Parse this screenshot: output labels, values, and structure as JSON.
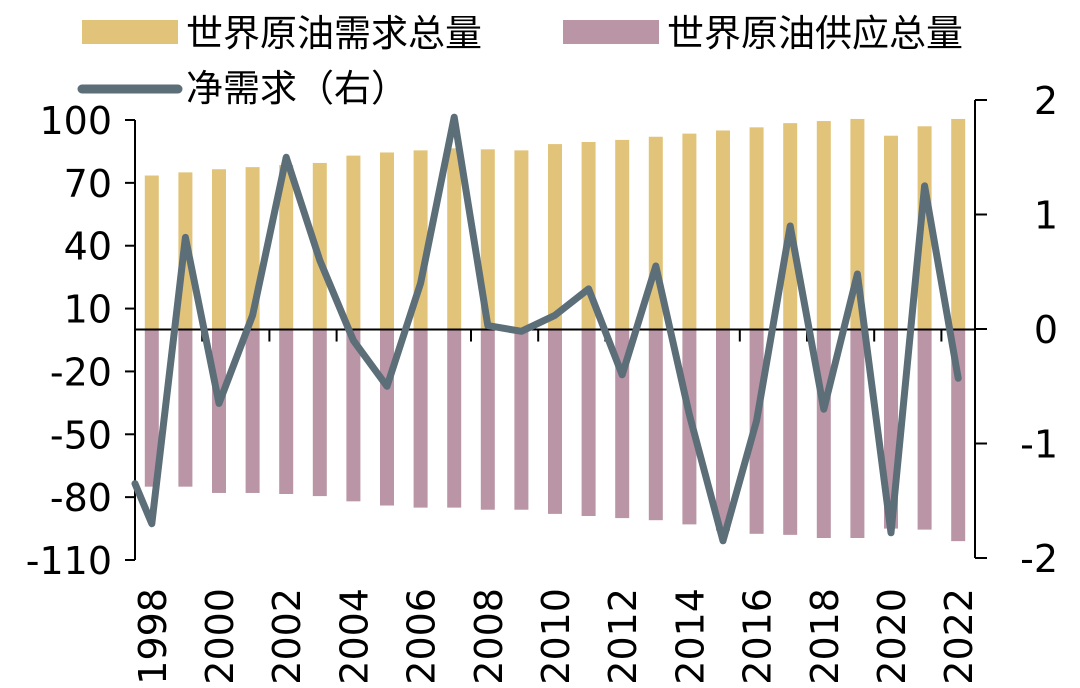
{
  "chart_data": {
    "type": "bar",
    "categories": [
      "1998",
      "1999",
      "2000",
      "2001",
      "2002",
      "2003",
      "2004",
      "2005",
      "2006",
      "2007",
      "2008",
      "2009",
      "2010",
      "2011",
      "2012",
      "2013",
      "2014",
      "2015",
      "2016",
      "2017",
      "2018",
      "2019",
      "2020",
      "2021",
      "2022"
    ],
    "x_tick_labels": [
      "1998",
      "2000",
      "2002",
      "2004",
      "2006",
      "2008",
      "2010",
      "2012",
      "2014",
      "2016",
      "2018",
      "2020",
      "2022"
    ],
    "series": [
      {
        "name": "世界原油需求总量",
        "type": "bar",
        "axis": "left",
        "color": "#E2C37A",
        "values": [
          73.5,
          75,
          76.5,
          77.5,
          78.5,
          79.5,
          83,
          84.5,
          85.5,
          86.5,
          86,
          85.5,
          88.5,
          89.5,
          90.5,
          92,
          93.5,
          95,
          96.5,
          98.5,
          99.5,
          100.5,
          92.5,
          97,
          100.5
        ]
      },
      {
        "name": "世界原油供应总量",
        "type": "bar",
        "axis": "left",
        "color": "#B995A6",
        "values": [
          -75,
          -75,
          -78,
          -78,
          -78.5,
          -79.5,
          -82,
          -84,
          -85,
          -85,
          -86,
          -86,
          -88,
          -89,
          -90,
          -91,
          -93,
          -96,
          -97.5,
          -98,
          -99.5,
          -99.5,
          -95,
          -95.5,
          -101
        ]
      },
      {
        "name": "净需求（右）",
        "type": "line",
        "axis": "right",
        "color": "#5C6E78",
        "values": [
          -1.7,
          0.8,
          -0.65,
          0.12,
          1.5,
          0.6,
          -0.1,
          -0.5,
          0.4,
          1.85,
          0.03,
          -0.02,
          0.12,
          0.35,
          -0.4,
          0.55,
          -0.75,
          -1.85,
          -0.8,
          0.9,
          -0.7,
          0.48,
          -1.78,
          1.25,
          -0.43
        ]
      }
    ],
    "left_axis": {
      "min": -110,
      "max": 100,
      "ticks": [
        100,
        70,
        40,
        10,
        -20,
        -50,
        -80,
        -110
      ],
      "tick_labels": [
        "100",
        "70",
        "40",
        "10",
        "-20",
        "-50",
        "-80",
        "-110"
      ]
    },
    "right_axis": {
      "min": -2,
      "max": 2,
      "ticks": [
        2,
        1,
        0,
        -1,
        -2
      ],
      "tick_labels": [
        "2",
        "1",
        "0",
        "-1",
        "-2"
      ]
    },
    "legend": [
      "世界原油需求总量",
      "世界原油供应总量",
      "净需求（右）"
    ],
    "legend_position": "top",
    "grid": false,
    "line_start_value": -1.35
  }
}
